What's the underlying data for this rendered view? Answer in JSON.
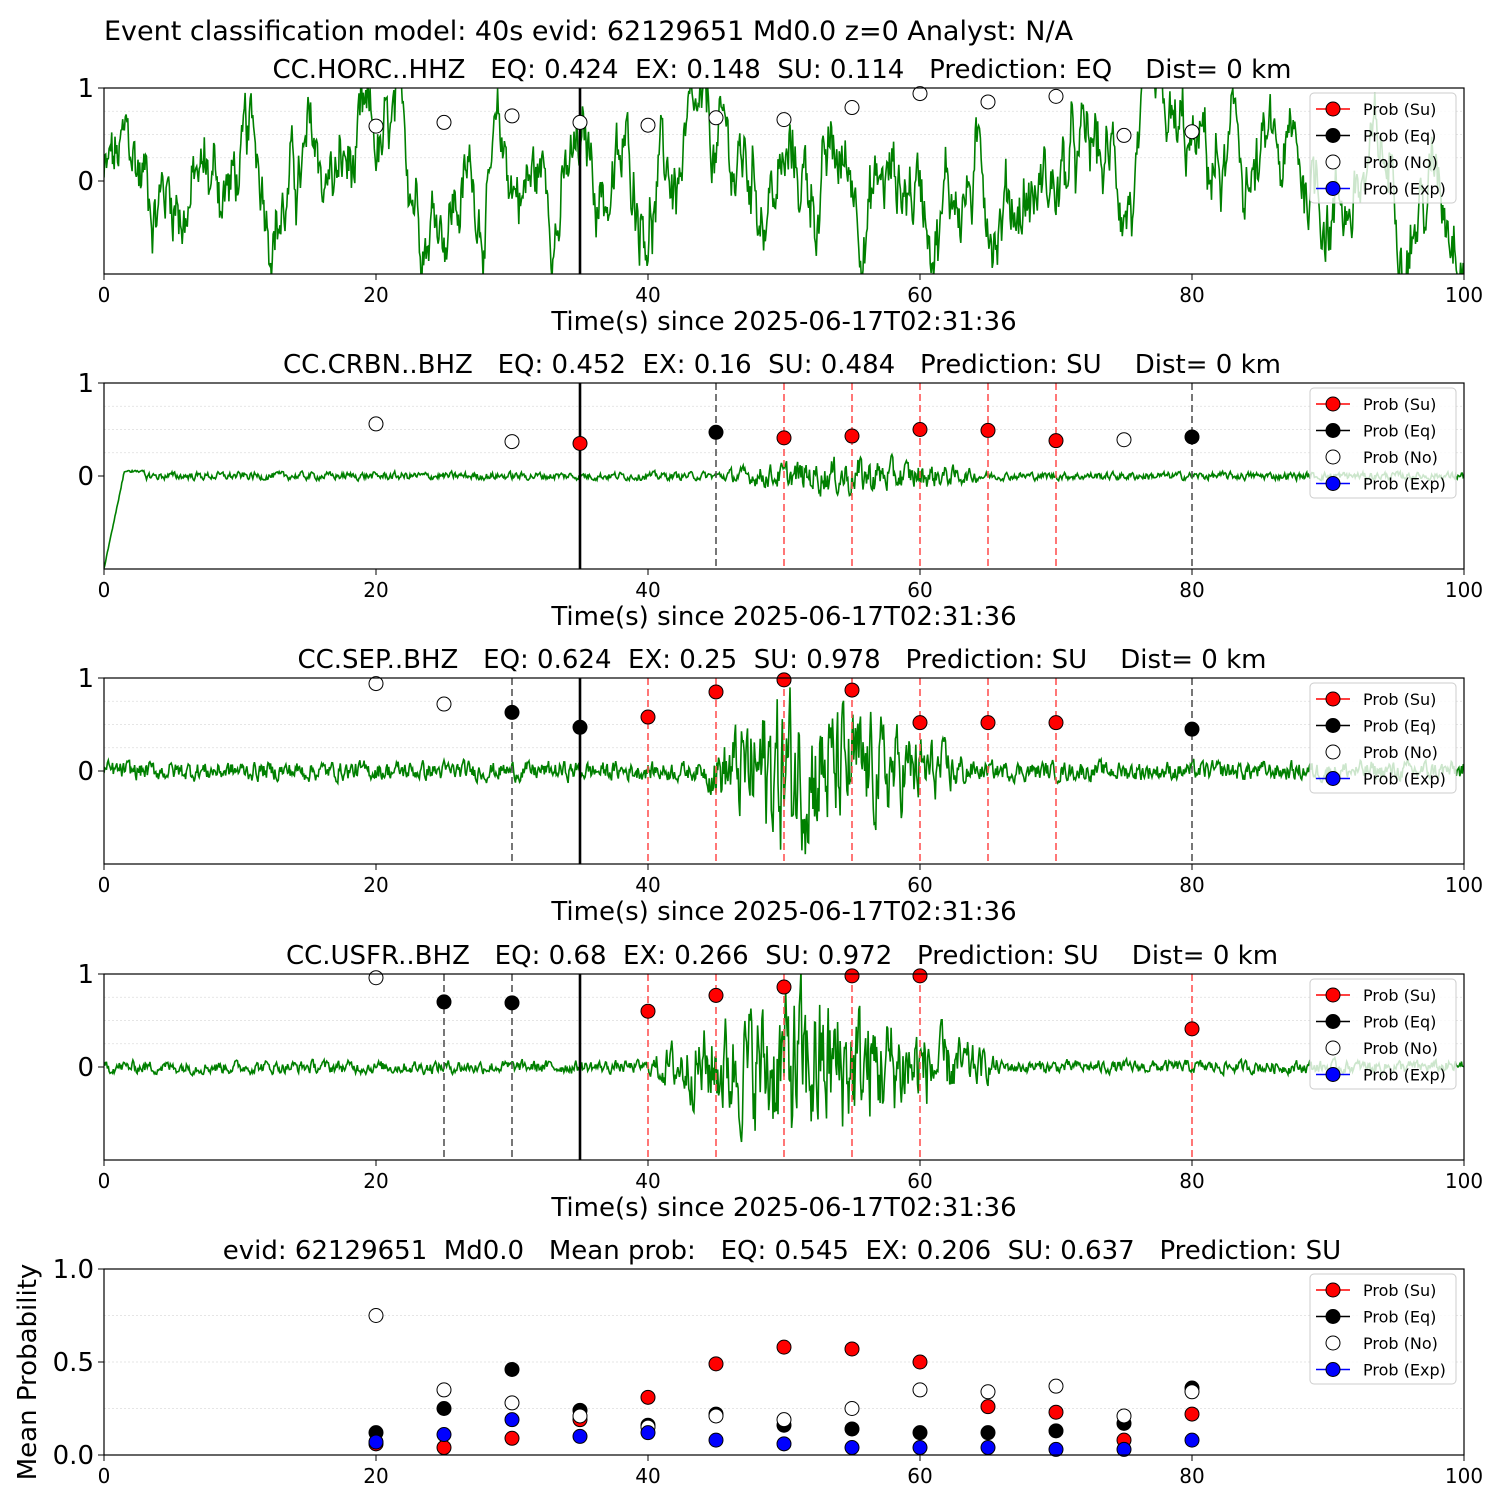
{
  "figure_title": "Event classification model: 40s evid: 62129651 Md0.0 z=0 Analyst: N/A",
  "colors": {
    "su": "#ff0000",
    "eq": "#000000",
    "no": "#ffffff",
    "exp": "#0000ff",
    "waveform": "#008000",
    "su_line": "#ff5555",
    "eq_line": "#555555",
    "origin_line": "#000000"
  },
  "legend": [
    "Prob (Su)",
    "Prob (Eq)",
    "Prob (No)",
    "Prob (Exp)"
  ],
  "chart_data": [
    {
      "type": "line",
      "title": "CC.HORC..HHZ   EQ: 0.424  EX: 0.148  SU: 0.114   Prediction: EQ    Dist= 0 km",
      "xlabel": "Time(s) since 2025-06-17T02:31:36",
      "xlim": [
        0,
        100
      ],
      "ylim": [
        -1,
        1
      ],
      "xticks": [
        "0",
        "20",
        "40",
        "60",
        "80",
        "100"
      ],
      "yticks": [
        "1",
        "0"
      ],
      "legend_position": "top-right",
      "origin_time": 35,
      "waveform": {
        "amplitude": 0.9,
        "type": "noise"
      },
      "vlines": [],
      "points": [
        {
          "x": 20,
          "y": 0.59,
          "class": "no"
        },
        {
          "x": 25,
          "y": 0.63,
          "class": "no"
        },
        {
          "x": 30,
          "y": 0.7,
          "class": "no"
        },
        {
          "x": 35,
          "y": 0.63,
          "class": "no"
        },
        {
          "x": 40,
          "y": 0.6,
          "class": "no"
        },
        {
          "x": 45,
          "y": 0.68,
          "class": "no"
        },
        {
          "x": 50,
          "y": 0.66,
          "class": "no"
        },
        {
          "x": 55,
          "y": 0.79,
          "class": "no"
        },
        {
          "x": 60,
          "y": 0.94,
          "class": "no"
        },
        {
          "x": 65,
          "y": 0.85,
          "class": "no"
        },
        {
          "x": 70,
          "y": 0.91,
          "class": "no"
        },
        {
          "x": 75,
          "y": 0.49,
          "class": "no"
        },
        {
          "x": 80,
          "y": 0.53,
          "class": "no"
        }
      ]
    },
    {
      "type": "line",
      "title": "CC.CRBN..BHZ   EQ: 0.452  EX: 0.16  SU: 0.484   Prediction: SU    Dist= 0 km",
      "xlabel": "Time(s) since 2025-06-17T02:31:36",
      "xlim": [
        0,
        100
      ],
      "ylim": [
        -1,
        1
      ],
      "xticks": [
        "0",
        "20",
        "40",
        "60",
        "80",
        "100"
      ],
      "yticks": [
        "1",
        "0"
      ],
      "legend_position": "top-right",
      "origin_time": 35,
      "waveform": {
        "amplitude": 0.05,
        "type": "small-burst",
        "burst_start": 45,
        "burst_peak": 55,
        "burst_end": 65,
        "burst_amplitude": 0.25
      },
      "vlines": [
        {
          "x": 45,
          "class": "eq"
        },
        {
          "x": 50,
          "class": "su"
        },
        {
          "x": 55,
          "class": "su"
        },
        {
          "x": 60,
          "class": "su"
        },
        {
          "x": 65,
          "class": "su"
        },
        {
          "x": 70,
          "class": "su"
        },
        {
          "x": 80,
          "class": "eq"
        }
      ],
      "points": [
        {
          "x": 20,
          "y": 0.56,
          "class": "no"
        },
        {
          "x": 30,
          "y": 0.37,
          "class": "no"
        },
        {
          "x": 35,
          "y": 0.35,
          "class": "su"
        },
        {
          "x": 45,
          "y": 0.47,
          "class": "eq"
        },
        {
          "x": 50,
          "y": 0.41,
          "class": "su"
        },
        {
          "x": 55,
          "y": 0.43,
          "class": "su"
        },
        {
          "x": 60,
          "y": 0.5,
          "class": "su"
        },
        {
          "x": 65,
          "y": 0.49,
          "class": "su"
        },
        {
          "x": 70,
          "y": 0.38,
          "class": "su"
        },
        {
          "x": 75,
          "y": 0.39,
          "class": "no"
        },
        {
          "x": 80,
          "y": 0.42,
          "class": "eq"
        }
      ]
    },
    {
      "type": "line",
      "title": "CC.SEP..BHZ   EQ: 0.624  EX: 0.25  SU: 0.978   Prediction: SU    Dist= 0 km",
      "xlabel": "Time(s) since 2025-06-17T02:31:36",
      "xlim": [
        0,
        100
      ],
      "ylim": [
        -1,
        1
      ],
      "xticks": [
        "0",
        "20",
        "40",
        "60",
        "80",
        "100"
      ],
      "yticks": [
        "1",
        "0"
      ],
      "legend_position": "top-right",
      "origin_time": 35,
      "waveform": {
        "amplitude": 0.12,
        "type": "burst",
        "burst_start": 44,
        "burst_peak": 50,
        "burst_end": 64,
        "burst_amplitude": 1.0
      },
      "vlines": [
        {
          "x": 30,
          "class": "eq"
        },
        {
          "x": 40,
          "class": "su"
        },
        {
          "x": 45,
          "class": "su"
        },
        {
          "x": 50,
          "class": "su"
        },
        {
          "x": 55,
          "class": "su"
        },
        {
          "x": 60,
          "class": "su"
        },
        {
          "x": 65,
          "class": "su"
        },
        {
          "x": 70,
          "class": "su"
        },
        {
          "x": 80,
          "class": "eq"
        }
      ],
      "points": [
        {
          "x": 20,
          "y": 0.94,
          "class": "no"
        },
        {
          "x": 25,
          "y": 0.72,
          "class": "no"
        },
        {
          "x": 30,
          "y": 0.63,
          "class": "eq"
        },
        {
          "x": 35,
          "y": 0.47,
          "class": "eq"
        },
        {
          "x": 40,
          "y": 0.58,
          "class": "su"
        },
        {
          "x": 45,
          "y": 0.85,
          "class": "su"
        },
        {
          "x": 50,
          "y": 0.98,
          "class": "su"
        },
        {
          "x": 55,
          "y": 0.87,
          "class": "su"
        },
        {
          "x": 60,
          "y": 0.52,
          "class": "su"
        },
        {
          "x": 65,
          "y": 0.52,
          "class": "su"
        },
        {
          "x": 70,
          "y": 0.52,
          "class": "su"
        },
        {
          "x": 80,
          "y": 0.45,
          "class": "eq"
        }
      ]
    },
    {
      "type": "line",
      "title": "CC.USFR..BHZ   EQ: 0.68  EX: 0.266  SU: 0.972   Prediction: SU    Dist= 0 km",
      "xlabel": "Time(s) since 2025-06-17T02:31:36",
      "xlim": [
        0,
        100
      ],
      "ylim": [
        -1,
        1
      ],
      "xticks": [
        "0",
        "20",
        "40",
        "60",
        "80",
        "100"
      ],
      "yticks": [
        "1",
        "0"
      ],
      "legend_position": "top-right",
      "origin_time": 35,
      "waveform": {
        "amplitude": 0.08,
        "type": "burst",
        "burst_start": 40,
        "burst_peak": 51,
        "burst_end": 66,
        "burst_amplitude": 1.0
      },
      "vlines": [
        {
          "x": 25,
          "class": "eq"
        },
        {
          "x": 30,
          "class": "eq"
        },
        {
          "x": 40,
          "class": "su"
        },
        {
          "x": 45,
          "class": "su"
        },
        {
          "x": 50,
          "class": "su"
        },
        {
          "x": 55,
          "class": "su"
        },
        {
          "x": 60,
          "class": "su"
        },
        {
          "x": 80,
          "class": "su"
        }
      ],
      "points": [
        {
          "x": 20,
          "y": 0.96,
          "class": "no"
        },
        {
          "x": 25,
          "y": 0.7,
          "class": "eq"
        },
        {
          "x": 30,
          "y": 0.69,
          "class": "eq"
        },
        {
          "x": 40,
          "y": 0.6,
          "class": "su"
        },
        {
          "x": 45,
          "y": 0.77,
          "class": "su"
        },
        {
          "x": 50,
          "y": 0.86,
          "class": "su"
        },
        {
          "x": 55,
          "y": 0.98,
          "class": "su"
        },
        {
          "x": 60,
          "y": 0.98,
          "class": "su"
        },
        {
          "x": 80,
          "y": 0.41,
          "class": "su"
        }
      ]
    },
    {
      "type": "scatter",
      "title": "evid: 62129651  Md0.0   Mean prob:   EQ: 0.545  EX: 0.206  SU: 0.637   Prediction: SU",
      "xlabel": "",
      "ylabel": "Mean Probability",
      "xlim": [
        0,
        100
      ],
      "ylim": [
        0,
        1
      ],
      "xticks": [
        "0",
        "20",
        "40",
        "60",
        "80",
        "100"
      ],
      "yticks": [
        "1.0",
        "0.5",
        "0.0"
      ],
      "legend_position": "top-right",
      "series": [
        {
          "name": "Prob (Su)",
          "class": "su",
          "x": [
            20,
            25,
            30,
            35,
            40,
            45,
            50,
            55,
            60,
            65,
            70,
            75,
            80
          ],
          "y": [
            0.06,
            0.04,
            0.09,
            0.19,
            0.31,
            0.49,
            0.58,
            0.57,
            0.5,
            0.26,
            0.23,
            0.08,
            0.22
          ]
        },
        {
          "name": "Prob (Eq)",
          "class": "eq",
          "x": [
            20,
            25,
            30,
            35,
            40,
            45,
            50,
            55,
            60,
            65,
            70,
            75,
            80
          ],
          "y": [
            0.12,
            0.25,
            0.46,
            0.24,
            0.16,
            0.22,
            0.16,
            0.14,
            0.12,
            0.12,
            0.13,
            0.17,
            0.36
          ]
        },
        {
          "name": "Prob (No)",
          "class": "no",
          "x": [
            20,
            25,
            30,
            35,
            40,
            45,
            50,
            55,
            60,
            65,
            70,
            75,
            80
          ],
          "y": [
            0.75,
            0.35,
            0.28,
            0.21,
            0.15,
            0.21,
            0.19,
            0.25,
            0.35,
            0.34,
            0.37,
            0.21,
            0.34
          ]
        },
        {
          "name": "Prob (Exp)",
          "class": "exp",
          "x": [
            20,
            25,
            30,
            35,
            40,
            45,
            50,
            55,
            60,
            65,
            70,
            75,
            80
          ],
          "y": [
            0.07,
            0.11,
            0.19,
            0.1,
            0.12,
            0.08,
            0.06,
            0.04,
            0.04,
            0.04,
            0.03,
            0.03,
            0.08
          ]
        }
      ]
    }
  ]
}
